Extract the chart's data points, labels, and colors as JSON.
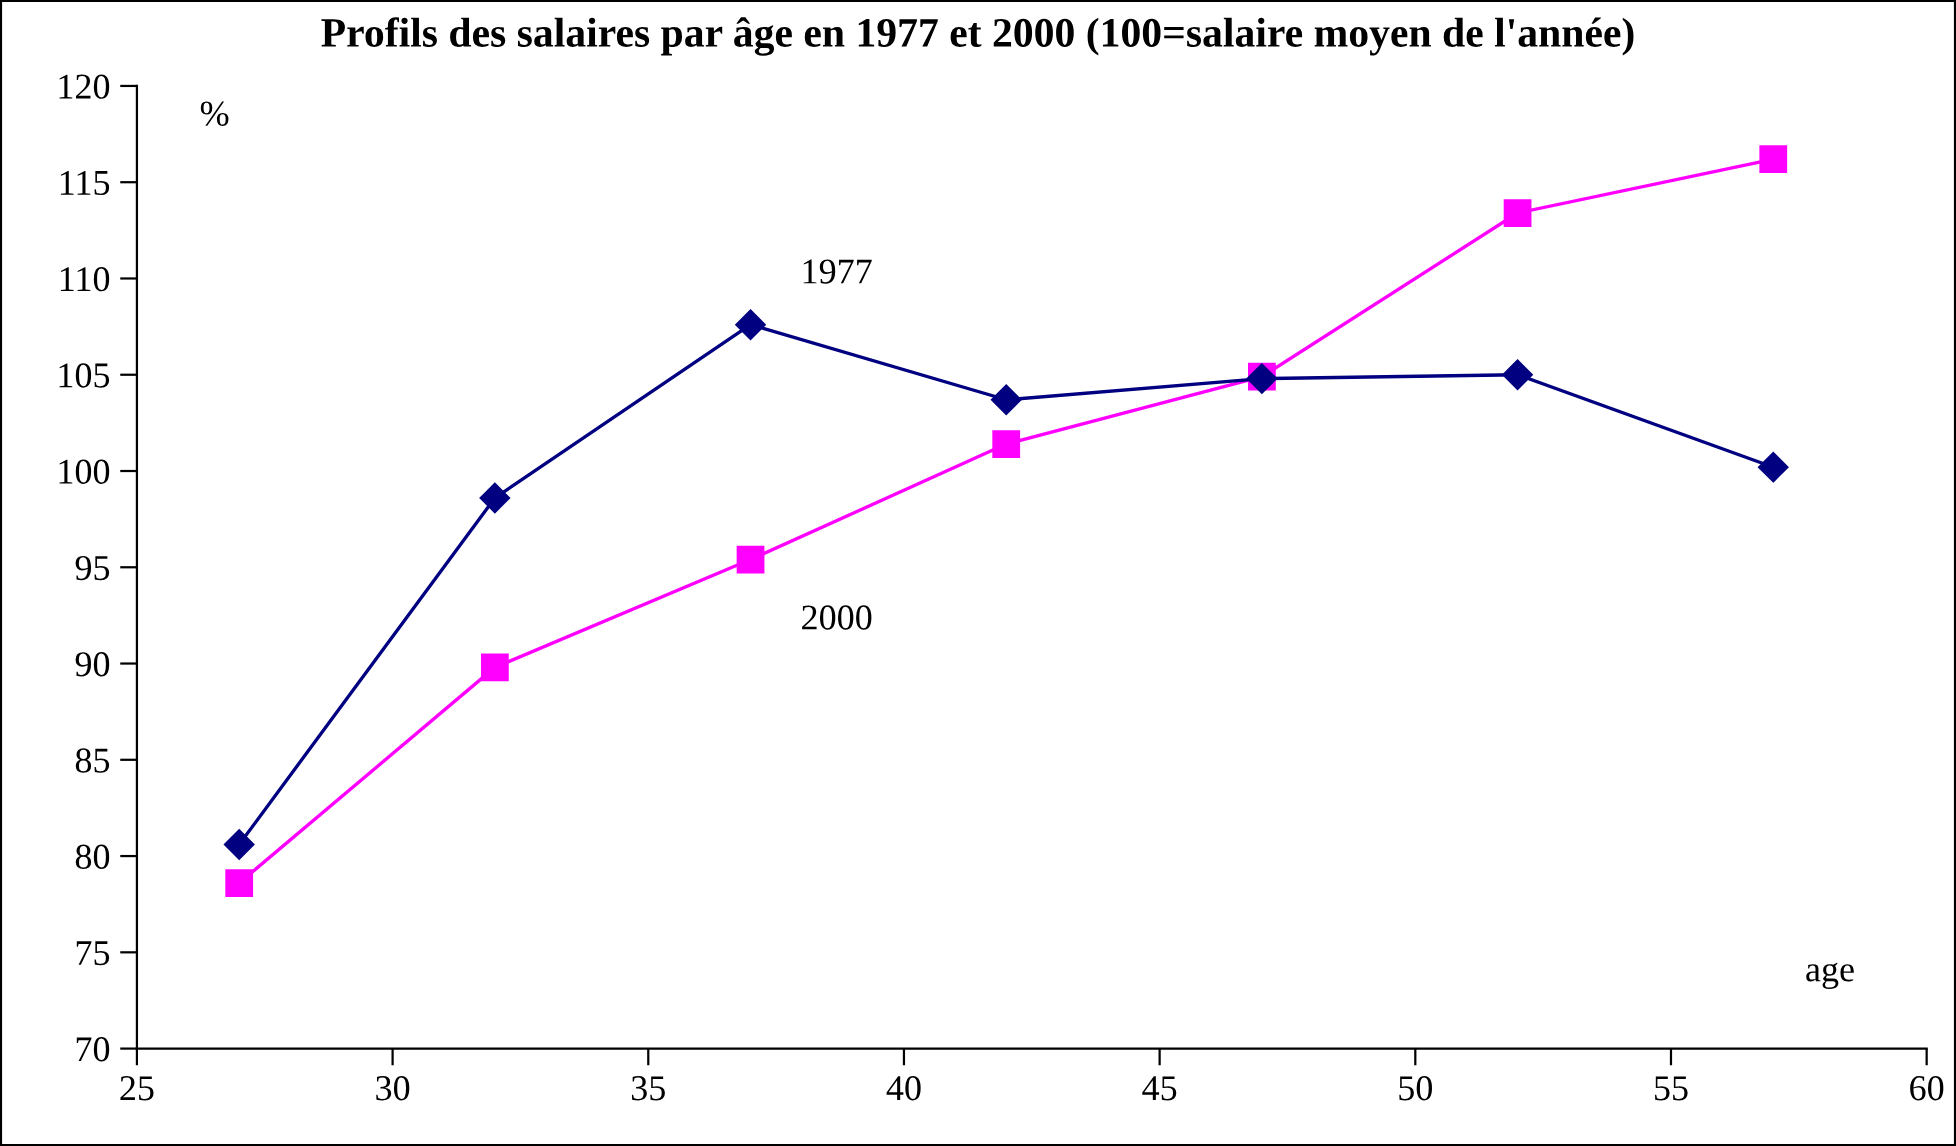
{
  "chart_data": {
    "type": "line",
    "title": "Profils des salaires par âge en 1977 et 2000 (100=salaire moyen de l'année)",
    "xlabel": "age",
    "ylabel": "%",
    "x": [
      27,
      32,
      37,
      42,
      47,
      52,
      57
    ],
    "series": [
      {
        "name": "1977",
        "color": "#000080",
        "marker": "diamond",
        "values": [
          80.6,
          98.6,
          107.6,
          103.7,
          104.8,
          105.0,
          100.2
        ]
      },
      {
        "name": "2000",
        "color": "#ff00ff",
        "marker": "square",
        "values": [
          78.6,
          89.8,
          95.4,
          101.4,
          104.9,
          113.4,
          116.2
        ]
      }
    ],
    "xlim": [
      25,
      60
    ],
    "xticks": [
      25,
      30,
      35,
      40,
      45,
      50,
      55,
      60
    ],
    "ylim": [
      70,
      120
    ],
    "yticks": [
      70,
      75,
      80,
      85,
      90,
      95,
      100,
      105,
      110,
      115,
      120
    ],
    "grid": false,
    "legend": false,
    "line_style": "solid"
  }
}
